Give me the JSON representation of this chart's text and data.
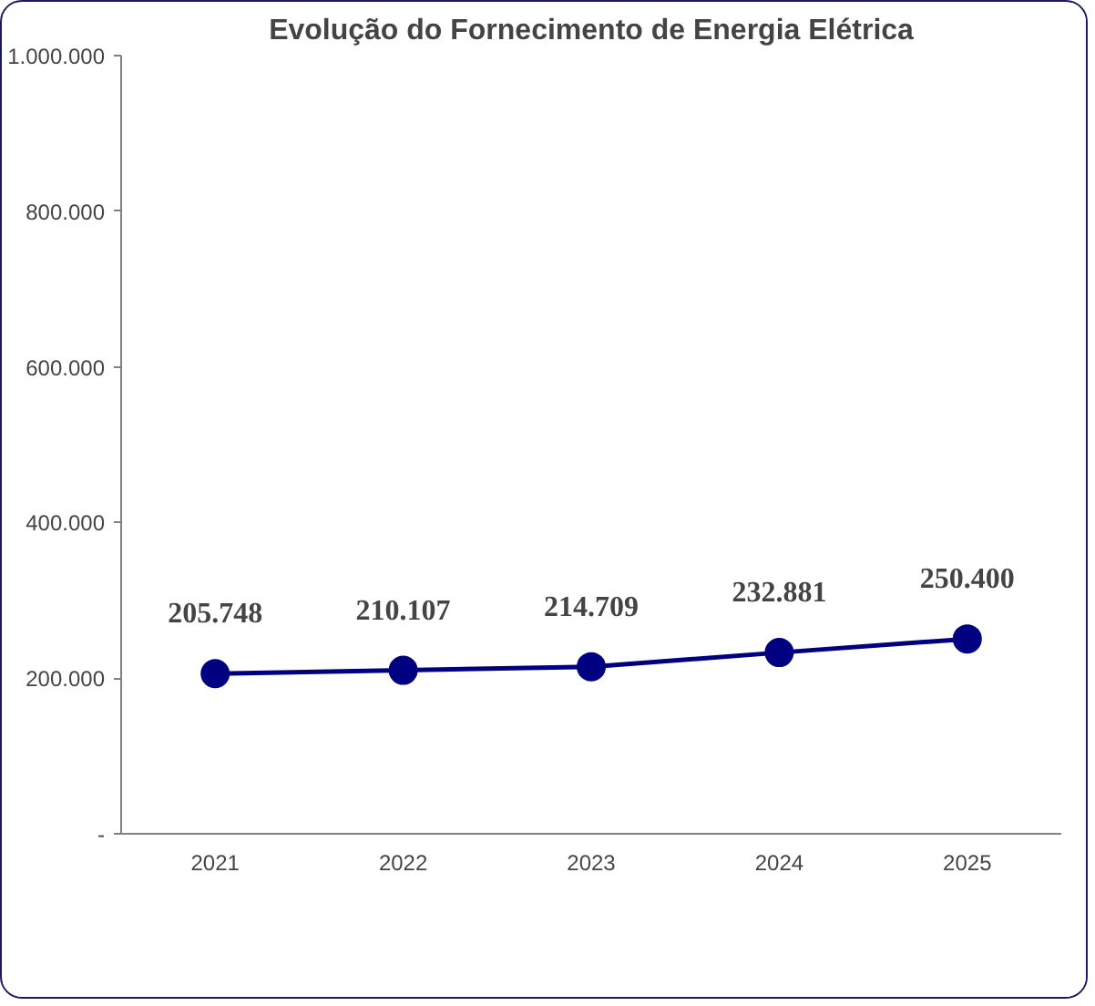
{
  "chart_data": {
    "type": "line",
    "title": "Evolução do Fornecimento de Energia Elétrica",
    "categories": [
      "2021",
      "2022",
      "2023",
      "2024",
      "2025"
    ],
    "series": [
      {
        "color": "#000080",
        "values": [
          205748,
          210107,
          214709,
          232881,
          250400
        ]
      }
    ],
    "value_labels": [
      "205.748",
      "210.107",
      "214.709",
      "232.881",
      "250.400"
    ],
    "ylim": [
      0,
      1000000
    ],
    "yticks": [
      {
        "value": 0,
        "label": "-"
      },
      {
        "value": 200000,
        "label": "200.000"
      },
      {
        "value": 400000,
        "label": "400.000"
      },
      {
        "value": 600000,
        "label": "600.000"
      },
      {
        "value": 800000,
        "label": "800.000"
      },
      {
        "value": 1000000,
        "label": "1.000.000"
      }
    ],
    "grid": false,
    "marker": "circle",
    "line_style": "solid"
  }
}
